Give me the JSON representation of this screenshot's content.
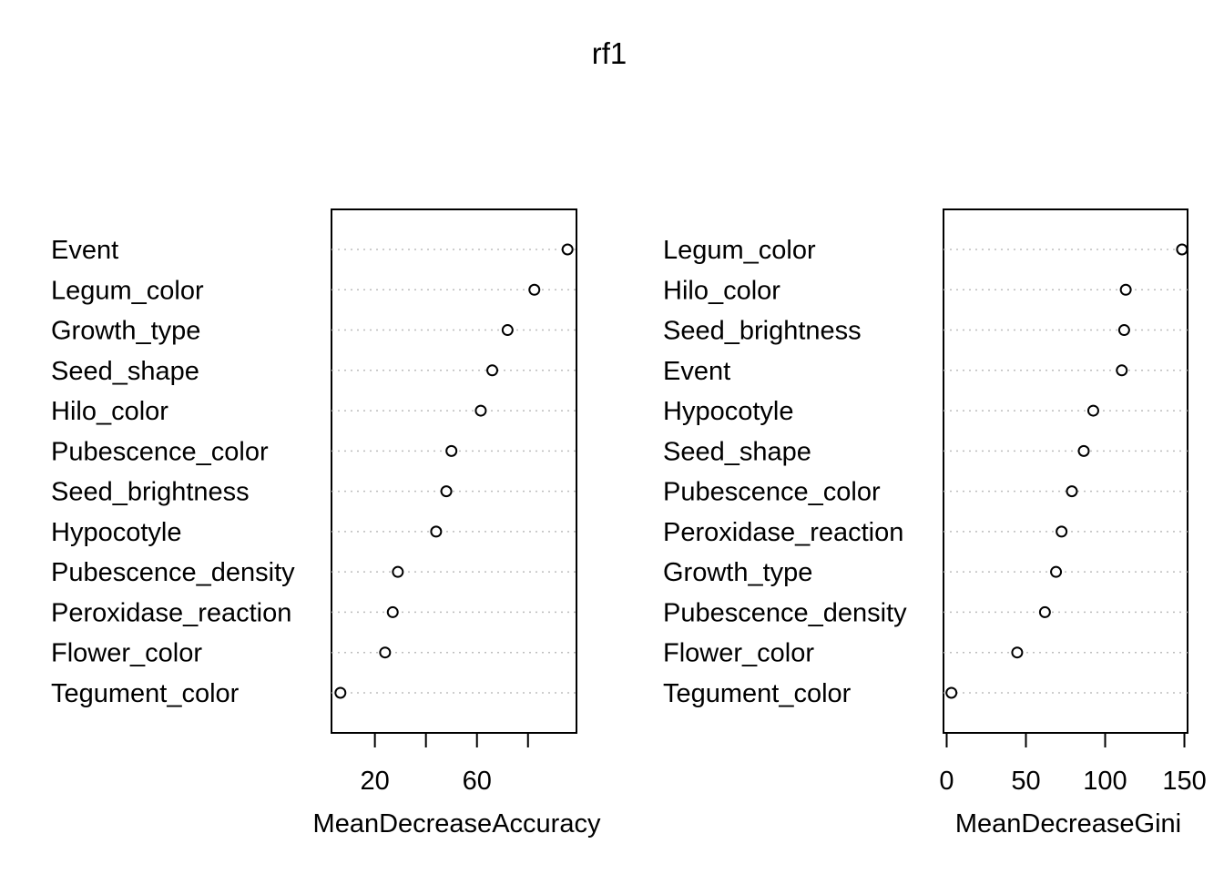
{
  "title": "rf1",
  "chart_data": [
    {
      "type": "scatter",
      "subtype": "dotchart",
      "xlabel": "MeanDecreaseAccuracy",
      "xlim": [
        3,
        99
      ],
      "xticks": [
        20,
        40,
        60,
        80
      ],
      "xtick_labels": [
        "20",
        "",
        "60",
        ""
      ],
      "grid": "dotted horizontal",
      "categories": [
        "Event",
        "Legum_color",
        "Growth_type",
        "Seed_shape",
        "Hilo_color",
        "Pubescence_color",
        "Seed_brightness",
        "Hypocotyle",
        "Pubescence_density",
        "Peroxidase_reaction",
        "Flower_color",
        "Tegument_color"
      ],
      "values": [
        95.5,
        82.5,
        72,
        66,
        61.5,
        50,
        48,
        44,
        29,
        27,
        24,
        6.5
      ]
    },
    {
      "type": "scatter",
      "subtype": "dotchart",
      "xlabel": "MeanDecreaseGini",
      "xlim": [
        -2,
        152
      ],
      "xticks": [
        0,
        50,
        100,
        150
      ],
      "xtick_labels": [
        "0",
        "50",
        "100",
        "150"
      ],
      "grid": "dotted horizontal",
      "categories": [
        "Legum_color",
        "Hilo_color",
        "Seed_brightness",
        "Event",
        "Hypocotyle",
        "Seed_shape",
        "Pubescence_color",
        "Peroxidase_reaction",
        "Growth_type",
        "Pubescence_density",
        "Flower_color",
        "Tegument_color"
      ],
      "values": [
        148.5,
        113,
        112,
        110.5,
        92.5,
        86.5,
        79,
        72.5,
        69,
        62,
        44.5,
        3
      ]
    }
  ]
}
